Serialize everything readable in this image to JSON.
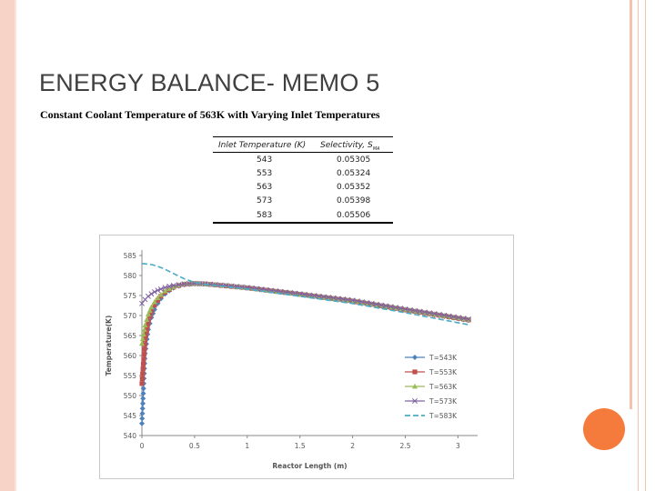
{
  "slide": {
    "title": "ENERGY BALANCE- MEMO 5",
    "subtitle": "Constant Coolant Temperature of 563K with Varying Inlet Temperatures"
  },
  "table": {
    "headers": [
      "Inlet Temperature (K)",
      "Selectivity, S"
    ],
    "rows": [
      [
        "543",
        "0.05305"
      ],
      [
        "553",
        "0.05324"
      ],
      [
        "563",
        "0.05352"
      ],
      [
        "573",
        "0.05398"
      ],
      [
        "583",
        "0.05506"
      ]
    ]
  },
  "colors": {
    "frame": "#f6d3c6",
    "accent_dot": "#f47b3c",
    "series": [
      "#4f81bd",
      "#c0504d",
      "#9bbb59",
      "#8064a2",
      "#4bacc6"
    ]
  },
  "chart_data": {
    "type": "line",
    "title": "",
    "xlabel": "Reactor Length (m)",
    "ylabel": "Temperature(K)",
    "xlim": [
      0,
      3.1
    ],
    "ylim": [
      540,
      585
    ],
    "xticks": [
      "0",
      "0.5",
      "1",
      "1.5",
      "2",
      "2.5",
      "3"
    ],
    "yticks": [
      "540",
      "545",
      "550",
      "555",
      "560",
      "565",
      "570",
      "575",
      "580",
      "585"
    ],
    "grid": false,
    "legend_position": "right",
    "series": [
      {
        "name": "T=543K",
        "marker": "diamond",
        "x": [
          0,
          0.03,
          0.06,
          0.09,
          0.12,
          0.15,
          0.18,
          0.22,
          0.26,
          0.3,
          0.35,
          0.4,
          0.5,
          0.6,
          0.8,
          1.0,
          1.5,
          2.0,
          2.5,
          3.1
        ],
        "y": [
          543,
          560.5,
          566.5,
          569.5,
          571.5,
          573,
          574.2,
          575.4,
          576.2,
          576.9,
          577.4,
          577.7,
          577.9,
          577.9,
          577.4,
          576.9,
          575.3,
          573.6,
          571.4,
          568.8
        ]
      },
      {
        "name": "T=553K",
        "marker": "square",
        "x": [
          0,
          0.03,
          0.06,
          0.09,
          0.12,
          0.15,
          0.18,
          0.22,
          0.26,
          0.3,
          0.35,
          0.4,
          0.5,
          0.6,
          0.8,
          1.0,
          1.5,
          2.0,
          2.5,
          3.1
        ],
        "y": [
          553,
          564,
          568.5,
          571,
          572.6,
          573.8,
          574.8,
          575.8,
          576.5,
          577.1,
          577.5,
          577.8,
          578,
          577.9,
          577.4,
          576.9,
          575.3,
          573.6,
          571.4,
          568.9
        ]
      },
      {
        "name": "T=563K",
        "marker": "triangle",
        "x": [
          0,
          0.03,
          0.06,
          0.09,
          0.12,
          0.15,
          0.18,
          0.22,
          0.26,
          0.3,
          0.35,
          0.4,
          0.5,
          0.6,
          0.8,
          1.0,
          1.5,
          2.0,
          2.5,
          3.1
        ],
        "y": [
          563,
          567.6,
          570.3,
          572.1,
          573.4,
          574.4,
          575.2,
          576.1,
          576.7,
          577.2,
          577.6,
          577.9,
          578,
          577.9,
          577.5,
          576.9,
          575.3,
          573.7,
          571.5,
          569
        ]
      },
      {
        "name": "T=573K",
        "marker": "cross",
        "x": [
          0,
          0.03,
          0.06,
          0.09,
          0.12,
          0.15,
          0.18,
          0.22,
          0.26,
          0.3,
          0.35,
          0.4,
          0.5,
          0.6,
          0.8,
          1.0,
          1.5,
          2.0,
          2.5,
          3.1
        ],
        "y": [
          573,
          574,
          574.8,
          575.4,
          575.9,
          576.3,
          576.6,
          577,
          577.3,
          577.5,
          577.7,
          577.9,
          578,
          577.9,
          577.5,
          577,
          575.4,
          573.8,
          571.6,
          569.1
        ]
      },
      {
        "name": "T=583K",
        "marker": "none",
        "dashed": true,
        "x": [
          0,
          0.1,
          0.2,
          0.3,
          0.4,
          0.5,
          0.6,
          0.8,
          1.0,
          1.5,
          2.0,
          2.5,
          3.1
        ],
        "y": [
          583,
          582.7,
          581.8,
          580.5,
          579.2,
          578.3,
          577.8,
          577.2,
          576.6,
          574.8,
          573,
          570.7,
          567.7
        ]
      }
    ]
  }
}
